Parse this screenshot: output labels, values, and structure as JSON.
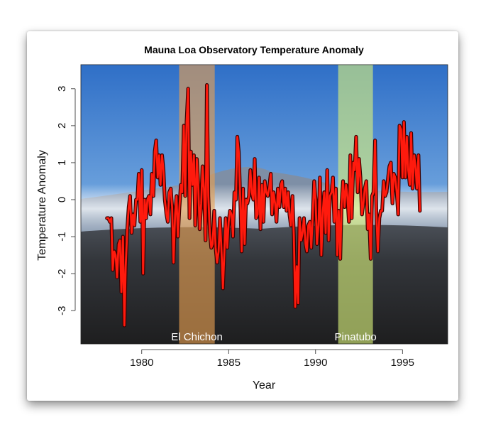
{
  "chart_data": {
    "type": "line",
    "title": "Mauna Loa Observatory Temperature Anomaly",
    "xlabel": "Year",
    "ylabel": "Temperature Anomaly",
    "xlim": [
      1976.5,
      1997.6
    ],
    "ylim": [
      -3.9,
      3.65
    ],
    "xticks": [
      1980,
      1985,
      1990,
      1995
    ],
    "yticks": [
      -3,
      -2,
      -1,
      0,
      1,
      2,
      3
    ],
    "grid": false,
    "colors": {
      "line": "#ff1a0d",
      "line_outline": "#3a0000",
      "el_chichon_band": "#e8a050",
      "pinatubo_band": "#d9f07a",
      "sky_top": "#2f6fc7",
      "ground": "#2b2b2b"
    },
    "events": [
      {
        "label": "El Chichon",
        "start": 1982.15,
        "end": 1984.2
      },
      {
        "label": "Pinatubo",
        "start": 1991.3,
        "end": 1993.3
      }
    ],
    "series": [
      {
        "x": [
          1978.0,
          1978.08,
          1978.17,
          1978.25,
          1978.33,
          1978.42,
          1978.5,
          1978.58,
          1978.67,
          1978.75,
          1978.83,
          1978.92,
          1979.0,
          1979.08,
          1979.17,
          1979.25,
          1979.33,
          1979.42,
          1979.5,
          1979.58,
          1979.67,
          1979.75,
          1979.83,
          1979.92,
          1980.0,
          1980.08,
          1980.17,
          1980.25,
          1980.33,
          1980.42,
          1980.5,
          1980.58,
          1980.67,
          1980.75,
          1980.83,
          1980.92,
          1981.0,
          1981.08,
          1981.17,
          1981.25,
          1981.33,
          1981.42,
          1981.5,
          1981.58,
          1981.67,
          1981.75,
          1981.83,
          1981.92,
          1982.0,
          1982.08,
          1982.17,
          1982.25,
          1982.33,
          1982.42,
          1982.5,
          1982.58,
          1982.67,
          1982.75,
          1982.83,
          1982.92,
          1983.0,
          1983.08,
          1983.17,
          1983.25,
          1983.33,
          1983.42,
          1983.5,
          1983.58,
          1983.67,
          1983.75,
          1983.83,
          1983.92,
          1984.0,
          1984.08,
          1984.17,
          1984.25,
          1984.33,
          1984.42,
          1984.5,
          1984.58,
          1984.67,
          1984.75,
          1984.83,
          1984.92,
          1985.0,
          1985.08,
          1985.17,
          1985.25,
          1985.33,
          1985.42,
          1985.5,
          1985.58,
          1985.67,
          1985.75,
          1985.83,
          1985.92,
          1986.0,
          1986.08,
          1986.17,
          1986.25,
          1986.33,
          1986.42,
          1986.5,
          1986.58,
          1986.67,
          1986.75,
          1986.83,
          1986.92,
          1987.0,
          1987.08,
          1987.17,
          1987.25,
          1987.33,
          1987.42,
          1987.5,
          1987.58,
          1987.67,
          1987.75,
          1987.83,
          1987.92,
          1988.0,
          1988.08,
          1988.17,
          1988.25,
          1988.33,
          1988.42,
          1988.5,
          1988.58,
          1988.67,
          1988.75,
          1988.83,
          1988.92,
          1989.0,
          1989.08,
          1989.17,
          1989.25,
          1989.33,
          1989.42,
          1989.5,
          1989.58,
          1989.67,
          1989.75,
          1989.83,
          1989.92,
          1990.0,
          1990.08,
          1990.17,
          1990.25,
          1990.33,
          1990.42,
          1990.5,
          1990.58,
          1990.67,
          1990.75,
          1990.83,
          1990.92,
          1991.0,
          1991.08,
          1991.17,
          1991.25,
          1991.33,
          1991.42,
          1991.5,
          1991.58,
          1991.67,
          1991.75,
          1991.83,
          1991.92,
          1992.0,
          1992.08,
          1992.17,
          1992.25,
          1992.33,
          1992.42,
          1992.5,
          1992.58,
          1992.67,
          1992.75,
          1992.83,
          1992.92,
          1993.0,
          1993.08,
          1993.17,
          1993.25,
          1993.33,
          1993.42,
          1993.5,
          1993.58,
          1993.67,
          1993.75,
          1993.83,
          1993.92,
          1994.0,
          1994.08,
          1994.17,
          1994.25,
          1994.33,
          1994.42,
          1994.5,
          1994.58,
          1994.67,
          1994.75,
          1994.83,
          1994.92,
          1995.0,
          1995.08,
          1995.17,
          1995.25,
          1995.33,
          1995.42,
          1995.5,
          1995.58,
          1995.67,
          1995.75,
          1995.83,
          1995.92,
          1996.0
        ],
        "values": [
          -0.5,
          -0.5,
          -0.6,
          -0.5,
          -1.9,
          -1.4,
          -1.5,
          -2.1,
          -1.2,
          -1.1,
          -2.5,
          -1.0,
          -3.4,
          -1.8,
          -0.8,
          -0.2,
          0.1,
          -0.9,
          -0.4,
          -0.7,
          0.0,
          0.0,
          0.7,
          -0.6,
          0.8,
          -2.0,
          0.0,
          -0.5,
          0.0,
          0.1,
          -0.4,
          0.7,
          0.1,
          1.3,
          1.6,
          0.6,
          1.2,
          0.4,
          1.2,
          0.8,
          0.0,
          -0.4,
          -0.6,
          0.2,
          0.3,
          -0.2,
          -1.7,
          -0.4,
          0.1,
          -1.0,
          -0.2,
          0.4,
          0.2,
          2.0,
          0.1,
          2.1,
          3.0,
          -0.5,
          1.3,
          0.4,
          1.2,
          -0.7,
          1.1,
          0.4,
          -0.8,
          -0.1,
          0.9,
          0.3,
          -1.1,
          3.1,
          0.1,
          -0.9,
          -1.3,
          -1.2,
          -0.3,
          -1.3,
          -1.7,
          -1.4,
          -0.5,
          -1.3,
          -2.4,
          -1.5,
          -0.5,
          -1.3,
          -0.6,
          -0.3,
          -0.4,
          -1.0,
          0.2,
          0.0,
          1.7,
          1.3,
          0.0,
          -1.4,
          0.3,
          -1.2,
          0.0,
          -0.1,
          0.1,
          0.8,
          0.2,
          0.0,
          1.1,
          -0.5,
          -0.4,
          0.6,
          -0.8,
          0.4,
          -0.6,
          0.5,
          0.2,
          0.1,
          0.3,
          0.7,
          -0.4,
          0.2,
          -0.1,
          -0.6,
          0.3,
          -0.2,
          0.4,
          0.5,
          -0.2,
          0.3,
          -0.3,
          0.2,
          -0.4,
          -0.7,
          0.1,
          -1.0,
          -2.9,
          -1.8,
          -2.8,
          -0.5,
          -1.1,
          -0.9,
          -0.5,
          -1.2,
          -1.4,
          -0.7,
          -0.6,
          -1.3,
          -0.5,
          0.5,
          0.0,
          -1.2,
          -0.7,
          0.6,
          -1.5,
          -0.3,
          0.2,
          -0.9,
          0.8,
          -1.1,
          0.1,
          0.2,
          0.6,
          -0.6,
          0.3,
          -1.5,
          -0.3,
          -1.6,
          -0.1,
          0.5,
          -0.2,
          0.4,
          0.1,
          -0.6,
          1.2,
          -0.5,
          1.0,
          0.8,
          1.7,
          0.2,
          1.1,
          0.6,
          -0.4,
          -0.1,
          0.3,
          0.5,
          -0.8,
          -0.4,
          -1.6,
          0.1,
          0.2,
          1.6,
          -0.4,
          -1.4,
          -0.5,
          -0.3,
          -0.3,
          0.5,
          0.1,
          0.2,
          0.6,
          0.9,
          1.0,
          -0.1,
          0.7,
          0.6,
          0.2,
          -0.4,
          2.0,
          1.9,
          0.6,
          2.1,
          0.6,
          1.7,
          0.8,
          0.4,
          1.8,
          0.3,
          1.2,
          0.9,
          0.3,
          1.2,
          -0.3
        ]
      }
    ]
  }
}
